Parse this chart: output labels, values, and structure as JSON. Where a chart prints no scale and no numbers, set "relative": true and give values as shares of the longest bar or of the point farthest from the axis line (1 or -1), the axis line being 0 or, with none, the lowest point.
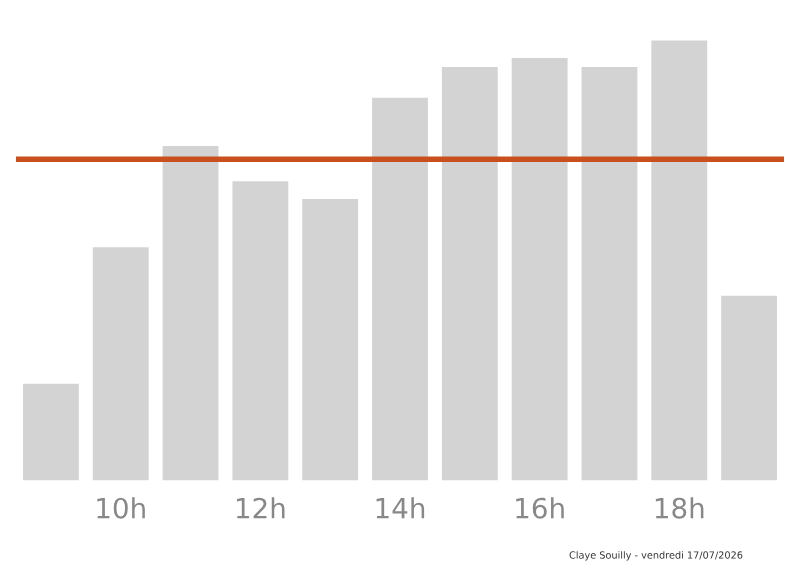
{
  "chart_data": {
    "type": "bar",
    "relative": true,
    "categories": [
      null,
      "10h",
      null,
      "12h",
      null,
      "14h",
      null,
      "16h",
      null,
      "18h",
      null
    ],
    "values": [
      0.22,
      0.53,
      0.76,
      0.68,
      0.64,
      0.87,
      0.94,
      0.96,
      0.94,
      1,
      0.42
    ],
    "color": "#d3d3d3",
    "ref_lines": [
      {
        "axis": "y",
        "value": 0.73,
        "color": "#c8501e"
      }
    ],
    "annotations": [
      "Claye Souilly - vendredi 17/07/2026"
    ],
    "grid": false
  }
}
